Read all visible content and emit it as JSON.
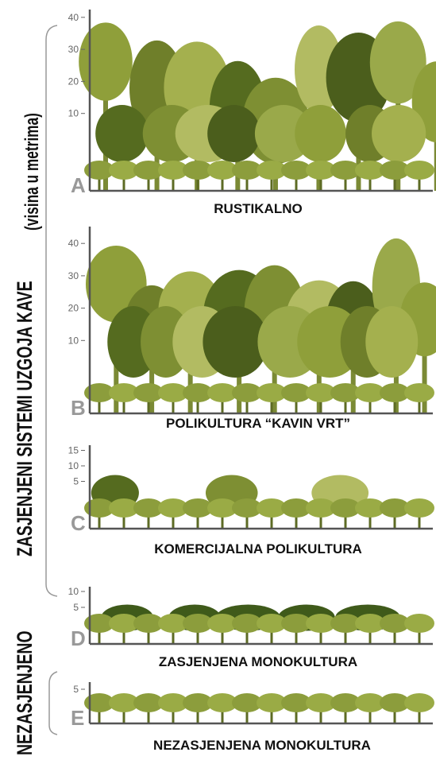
{
  "side_labels": {
    "shaded": "ZASJENJENI SISTEMI UZGOJA KAVE",
    "unit": "(visina u metrima)",
    "unshaded": "NEZASJENJENO"
  },
  "panels": [
    {
      "letter": "A",
      "title": "RUSTIKALNO",
      "ticks": [
        40,
        30,
        20,
        10
      ]
    },
    {
      "letter": "B",
      "title": "POLIKULTURA “KAVIN VRT”",
      "ticks": [
        40,
        30,
        20,
        10
      ]
    },
    {
      "letter": "C",
      "title": "KOMERCIJALNA POLIKULTURA",
      "ticks": [
        15,
        10,
        5
      ]
    },
    {
      "letter": "D",
      "title": "ZASJENJENA MONOKULTURA",
      "ticks": [
        10,
        5
      ]
    },
    {
      "letter": "E",
      "title": "NEZASJENJENA MONOKULTURA",
      "ticks": [
        5
      ]
    }
  ]
}
